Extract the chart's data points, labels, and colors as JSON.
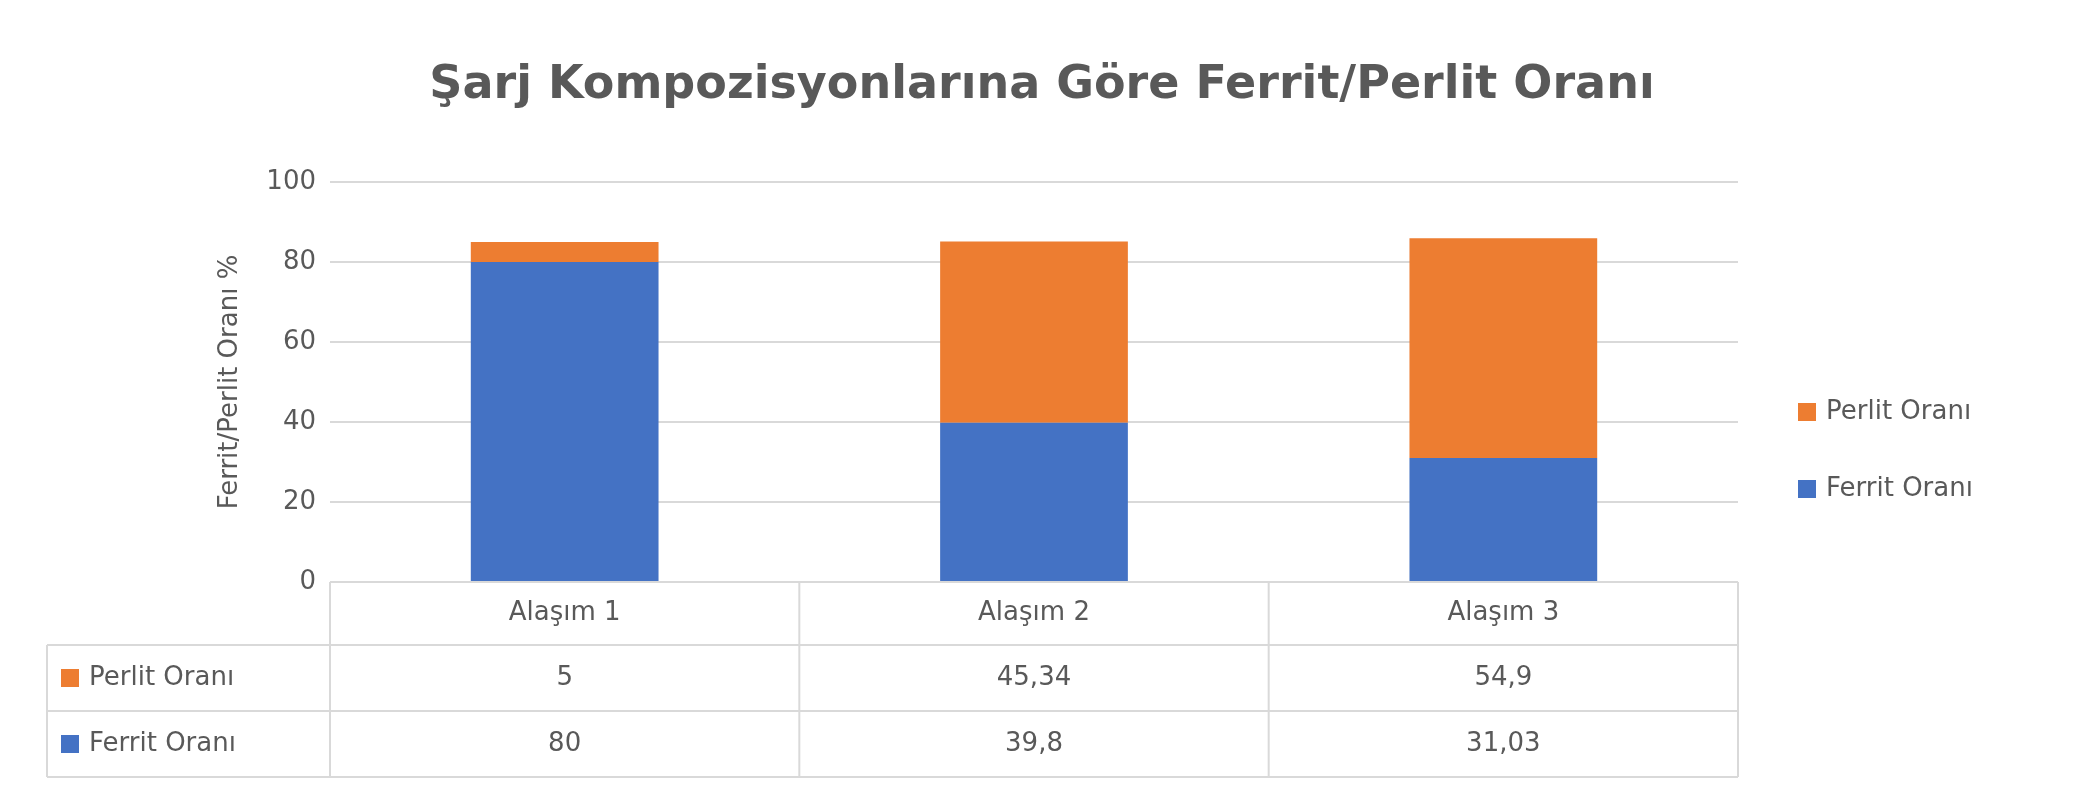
{
  "chart_data": {
    "type": "bar",
    "title": "Şarj Kompozisyonlarına Göre Ferrit/Perlit Oranı",
    "ylabel": "Ferrit/Perlit Oranı %",
    "categories": [
      "Alaşım 1",
      "Alaşım 2",
      "Alaşım 3"
    ],
    "stacked": true,
    "series": [
      {
        "name": "Ferrit Oranı",
        "color": "#4472c4",
        "values": [
          80,
          39.8,
          31.03
        ],
        "value_labels": [
          "80",
          "39,8",
          "31,03"
        ]
      },
      {
        "name": "Perlit Oranı",
        "color": "#ed7d31",
        "values": [
          5,
          45.34,
          54.9
        ],
        "value_labels": [
          "5",
          "45,34",
          "54,9"
        ]
      }
    ],
    "ylim": [
      0,
      100
    ],
    "yticks": [
      0,
      20,
      40,
      60,
      80,
      100
    ],
    "grid": "y",
    "legend": "right"
  }
}
